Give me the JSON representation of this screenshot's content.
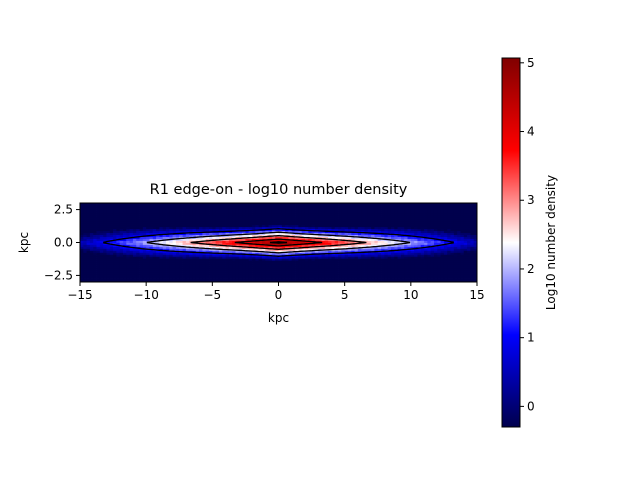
{
  "chart_data": {
    "type": "heatmap",
    "title": "R1 edge-on - log10 number density",
    "xlabel": "kpc",
    "ylabel": "kpc",
    "xlim": [
      -15,
      15
    ],
    "ylim": [
      -3,
      3
    ],
    "xticks": [
      -15,
      -10,
      -5,
      0,
      5,
      10,
      15
    ],
    "xtick_labels": [
      "−15",
      "−10",
      "−5",
      "0",
      "5",
      "10",
      "15"
    ],
    "yticks": [
      -2.5,
      0.0,
      2.5
    ],
    "ytick_labels": [
      "−2.5",
      "0.0",
      "2.5"
    ],
    "colormap": "seismic",
    "colormap_stops": [
      "#00004d",
      "#0000ff",
      "#ffffff",
      "#ff0000",
      "#800000"
    ],
    "density_model": {
      "description_of_field": "log10 number density, peaked at the center and falling off with |x| and |z|",
      "peak_value": 5.0,
      "min_value": -0.3,
      "x_scale_length": 4.5,
      "z_scale_height": 0.55
    },
    "contour_levels": [
      1.0,
      2.0,
      3.0,
      4.0,
      4.8
    ],
    "colorbar": {
      "label": "Log10 number density",
      "vmin": -0.3,
      "vmax": 5.07,
      "ticks": [
        0,
        1,
        2,
        3,
        4,
        5
      ],
      "tick_labels": [
        "0",
        "1",
        "2",
        "3",
        "4",
        "5"
      ]
    }
  }
}
